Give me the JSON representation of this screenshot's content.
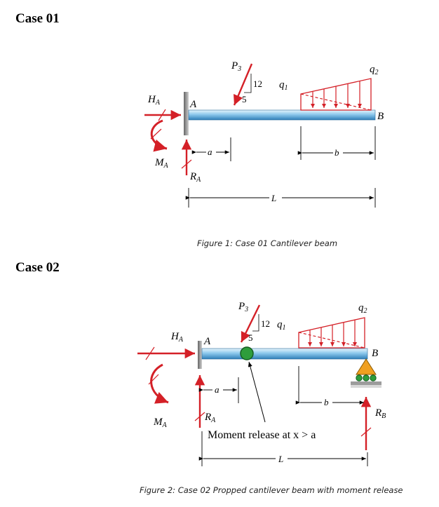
{
  "case1": {
    "heading": "Case 01",
    "caption": "Figure 1: Case 01 Cantilever beam",
    "labels": {
      "H": "H",
      "H_sub": "A",
      "M": "M",
      "M_sub": "A",
      "R": "R",
      "R_sub": "A",
      "A": "A",
      "B": "B",
      "P": "P",
      "P_sub": "3",
      "slope_rise": "12",
      "slope_run": "5",
      "q1": "q",
      "q1_sub": "1",
      "q2": "q",
      "q2_sub": "2",
      "a": "a",
      "b": "b",
      "L": "L"
    }
  },
  "case2": {
    "heading": "Case 02",
    "caption": "Figure 2: Case 02 Propped cantilever beam with moment release",
    "note": "Moment release at x > a",
    "labels": {
      "H": "H",
      "H_sub": "A",
      "M": "M",
      "M_sub": "A",
      "R": "R",
      "R_sub": "A",
      "RB": "R",
      "RB_sub": "B",
      "A": "A",
      "B": "B",
      "P": "P",
      "P_sub": "3",
      "slope_rise": "12",
      "slope_run": "5",
      "q1": "q",
      "q1_sub": "1",
      "q2": "q",
      "q2_sub": "2",
      "a": "a",
      "b": "b",
      "L": "L"
    }
  },
  "colors": {
    "load": "#d42027",
    "beam_light": "#c9e6f7",
    "beam_dark": "#2f7fb8",
    "hinge": "#2e9d3c",
    "support": "#f0a020"
  }
}
